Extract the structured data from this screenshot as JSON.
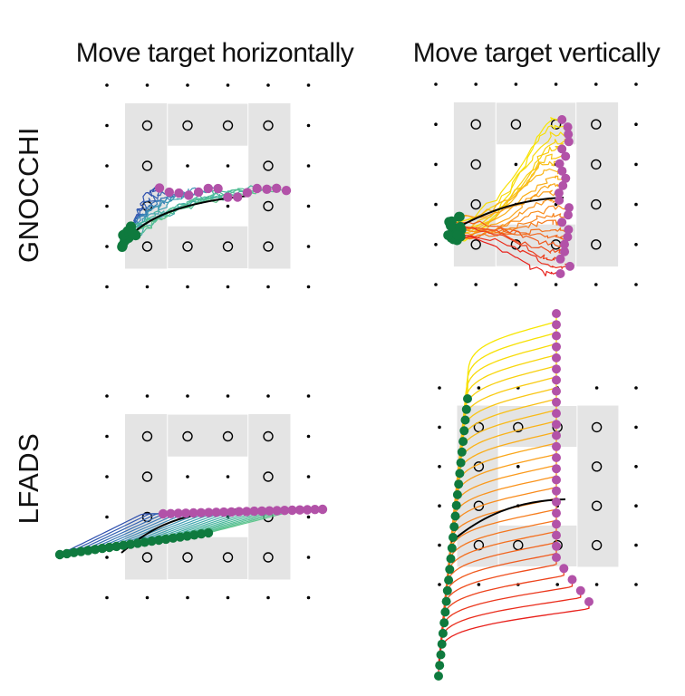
{
  "columns": [
    {
      "title": "Move target horizontally"
    },
    {
      "title": "Move target vertically"
    }
  ],
  "rows": [
    {
      "label": "GNOCCHI"
    },
    {
      "label": "LFADS"
    }
  ],
  "colors": {
    "start_marker": "#0f7a3e",
    "end_marker": "#b252a8",
    "mean_trajectory": "#000000",
    "workspace_shading": "#e4e4e4",
    "horizontal_sweep": [
      "#2e4fae",
      "#3b82b8",
      "#3fa5b0",
      "#48b79c",
      "#5fc58d"
    ],
    "vertical_sweep": [
      "#f7e600",
      "#f9c316",
      "#fb9a1c",
      "#f36b1e",
      "#e8201b"
    ]
  }
}
